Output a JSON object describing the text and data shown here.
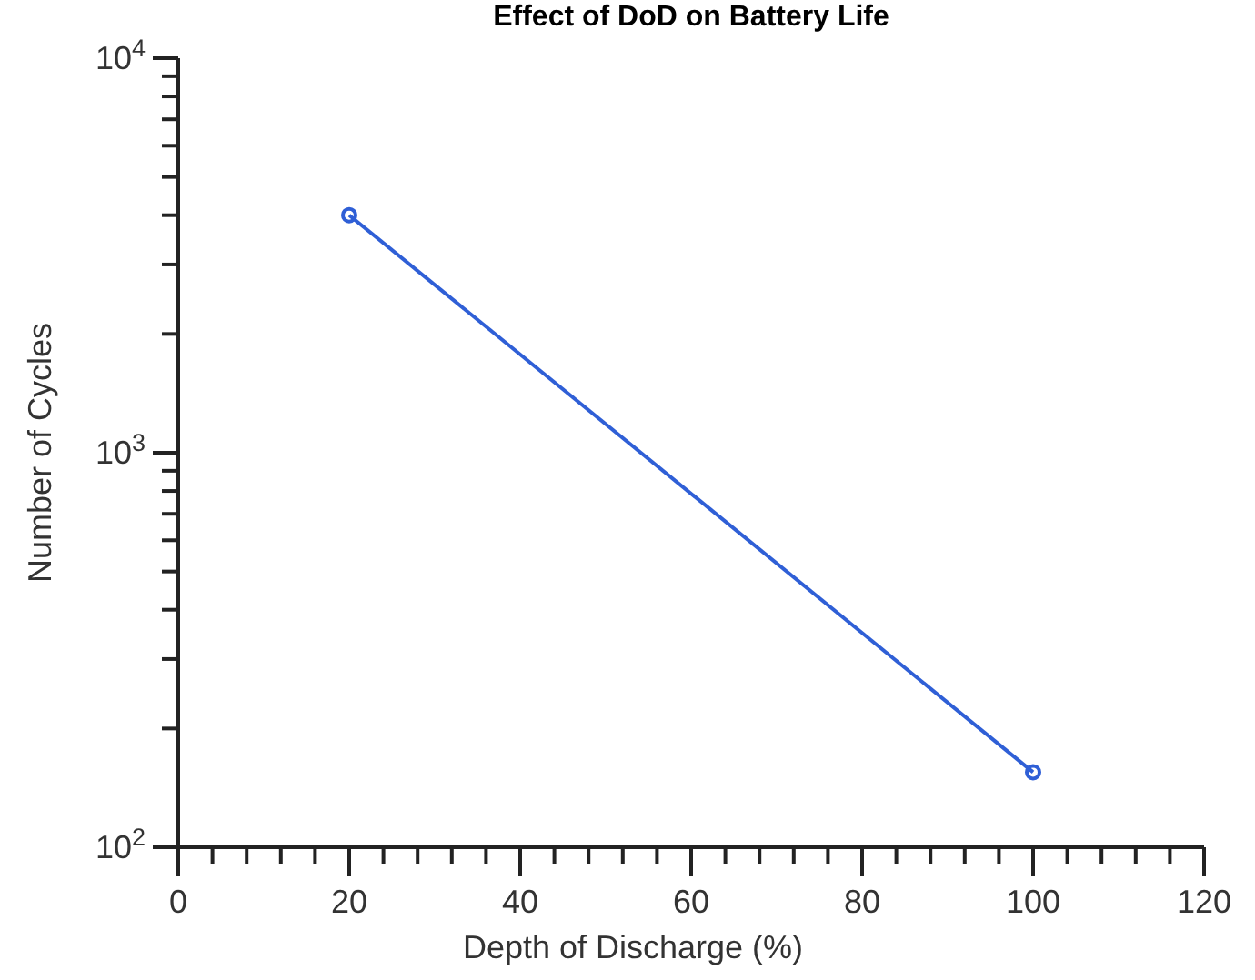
{
  "chart_data": {
    "type": "line",
    "title": "Effect of DoD on Battery Life",
    "xlabel": "Depth of Discharge (%)",
    "ylabel": "Number of Cycles",
    "x": [
      20,
      100
    ],
    "series": [
      {
        "color": "#2f5fd6",
        "values": [
          4000,
          155
        ]
      }
    ],
    "log": "y",
    "marker": "circle",
    "line_style": "solid",
    "xlim": [
      0,
      120
    ],
    "xticks": [
      0,
      {
        "value": 4,
        "label": null
      },
      {
        "value": 8,
        "label": null
      },
      {
        "value": 12,
        "label": null
      },
      {
        "value": 16,
        "label": null
      },
      20,
      {
        "value": 24,
        "label": null
      },
      {
        "value": 28,
        "label": null
      },
      {
        "value": 32,
        "label": null
      },
      {
        "value": 36,
        "label": null
      },
      40,
      {
        "value": 44,
        "label": null
      },
      {
        "value": 48,
        "label": null
      },
      {
        "value": 52,
        "label": null
      },
      {
        "value": 56,
        "label": null
      },
      60,
      {
        "value": 64,
        "label": null
      },
      {
        "value": 68,
        "label": null
      },
      {
        "value": 72,
        "label": null
      },
      {
        "value": 76,
        "label": null
      },
      80,
      {
        "value": 84,
        "label": null
      },
      {
        "value": 88,
        "label": null
      },
      {
        "value": 92,
        "label": null
      },
      {
        "value": 96,
        "label": null
      },
      100,
      {
        "value": 104,
        "label": null
      },
      {
        "value": 108,
        "label": null
      },
      {
        "value": 112,
        "label": null
      },
      {
        "value": 116,
        "label": null
      },
      120
    ],
    "ylim": [
      100,
      10000
    ],
    "yticks": [
      {
        "value": 100,
        "label": "10$^{2}$"
      },
      {
        "value": 200,
        "label": null
      },
      {
        "value": 300,
        "label": null
      },
      {
        "value": 400,
        "label": null
      },
      {
        "value": 500,
        "label": null
      },
      {
        "value": 600,
        "label": null
      },
      {
        "value": 700,
        "label": null
      },
      {
        "value": 800,
        "label": null
      },
      {
        "value": 900,
        "label": null
      },
      {
        "value": 1000,
        "label": "10$^{3}$"
      },
      {
        "value": 2000,
        "label": null
      },
      {
        "value": 3000,
        "label": null
      },
      {
        "value": 4000,
        "label": null
      },
      {
        "value": 5000,
        "label": null
      },
      {
        "value": 6000,
        "label": null
      },
      {
        "value": 7000,
        "label": null
      },
      {
        "value": 8000,
        "label": null
      },
      {
        "value": 9000,
        "label": null
      },
      {
        "value": 10000,
        "label": "10$^{4}$"
      }
    ]
  }
}
